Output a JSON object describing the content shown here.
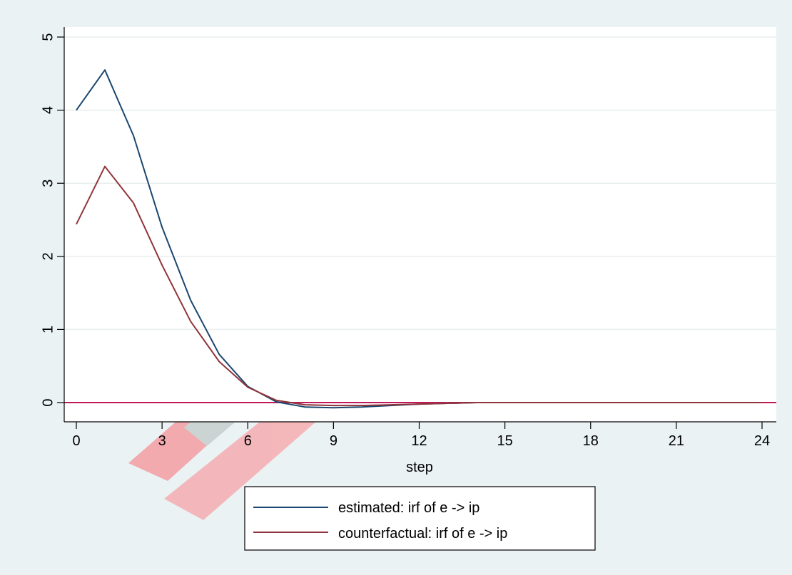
{
  "chart_data": {
    "type": "line",
    "xlabel": "step",
    "ylabel": "",
    "xlim": [
      0,
      24
    ],
    "ylim": [
      0,
      5
    ],
    "xticks": [
      0,
      3,
      6,
      9,
      12,
      15,
      18,
      21,
      24
    ],
    "yticks": [
      0,
      1,
      2,
      3,
      4,
      5
    ],
    "grid": true,
    "legend_position": "bottom-center",
    "reference_line": {
      "y": 0,
      "color": "#c0185a"
    },
    "x": [
      0,
      1,
      2,
      3,
      4,
      5,
      6,
      7,
      8,
      9,
      10,
      11,
      12,
      13,
      14,
      15,
      16,
      17,
      18,
      19,
      20,
      21,
      22,
      23,
      24
    ],
    "series": [
      {
        "name": "estimated: irf of e -> ip",
        "color": "#1a476f",
        "values": [
          4.0,
          4.55,
          3.65,
          2.4,
          1.4,
          0.66,
          0.22,
          0.01,
          -0.06,
          -0.07,
          -0.06,
          -0.04,
          -0.02,
          -0.01,
          0.0,
          0.0,
          0.0,
          0.0,
          0.0,
          0.0,
          0.0,
          0.0,
          0.0,
          0.0,
          0.0
        ]
      },
      {
        "name": "counterfactual: irf of e -> ip",
        "color": "#90353b",
        "values": [
          2.44,
          3.23,
          2.73,
          1.88,
          1.11,
          0.56,
          0.21,
          0.03,
          -0.03,
          -0.04,
          -0.04,
          -0.03,
          -0.02,
          -0.01,
          0.0,
          0.0,
          0.0,
          0.0,
          0.0,
          0.0,
          0.0,
          0.0,
          0.0,
          0.0,
          0.0
        ]
      }
    ]
  }
}
